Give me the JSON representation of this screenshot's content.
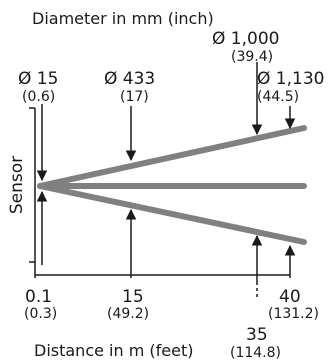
{
  "titles": {
    "diameter": "Diameter in mm (inch)",
    "distance": "Distance in m (feet)"
  },
  "sensor_label": "Sensor",
  "diameters": [
    {
      "mm": "Ø 15",
      "inch": "(0.6)"
    },
    {
      "mm": "Ø 433",
      "inch": "(17)"
    },
    {
      "mm": "Ø 1,000",
      "inch": "(39.4)"
    },
    {
      "mm": "Ø 1,130",
      "inch": "(44.5)"
    }
  ],
  "distances": [
    {
      "m": "0.1",
      "ft": "(0.3)"
    },
    {
      "m": "15",
      "ft": "(49.2)"
    },
    {
      "m": "35",
      "ft": "(114.8)"
    },
    {
      "m": "40",
      "ft": "(131.2)"
    }
  ],
  "colors": {
    "beam": "#808080",
    "text": "#1a1a1a",
    "arrow": "#1a1a1a"
  }
}
